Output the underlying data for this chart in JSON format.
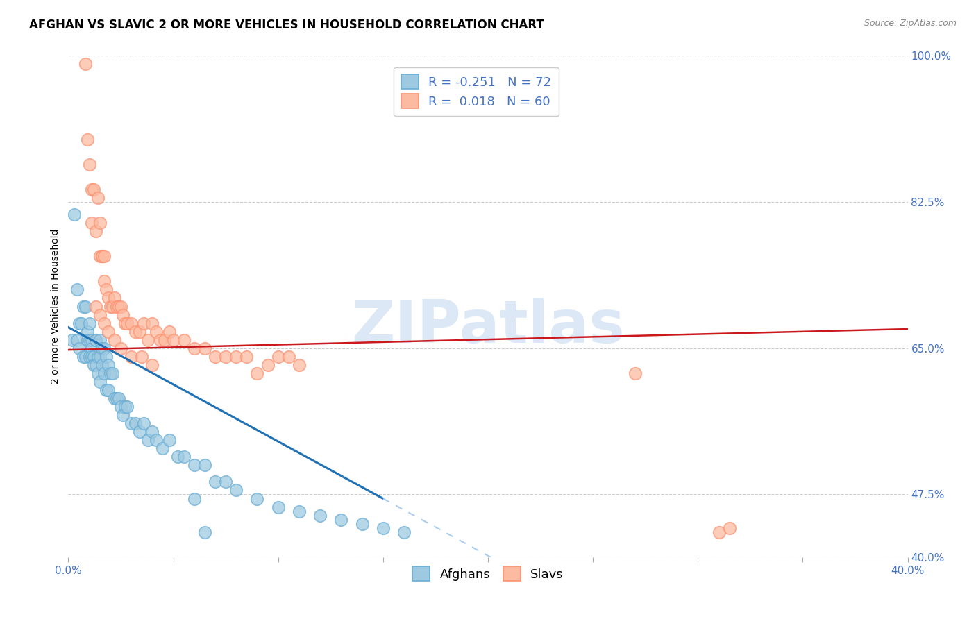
{
  "title": "AFGHAN VS SLAVIC 2 OR MORE VEHICLES IN HOUSEHOLD CORRELATION CHART",
  "source": "Source: ZipAtlas.com",
  "ylabel": "2 or more Vehicles in Household",
  "xlim": [
    0.0,
    0.4
  ],
  "ylim": [
    0.4,
    1.0
  ],
  "ytick_positions": [
    0.4,
    0.475,
    0.65,
    0.825,
    1.0
  ],
  "ytick_labels": [
    "40.0%",
    "47.5%",
    "65.0%",
    "82.5%",
    "100.0%"
  ],
  "blue_color": "#9ecae1",
  "pink_color": "#fcbba1",
  "blue_edge_color": "#6baed6",
  "pink_edge_color": "#fc9272",
  "blue_line_color": "#2171b5",
  "pink_line_color": "#cb181d",
  "watermark": "ZIPatlas",
  "title_fontsize": 12,
  "label_fontsize": 10,
  "tick_fontsize": 11,
  "blue_points_x": [
    0.002,
    0.003,
    0.004,
    0.004,
    0.005,
    0.005,
    0.006,
    0.007,
    0.007,
    0.008,
    0.008,
    0.009,
    0.009,
    0.01,
    0.01,
    0.01,
    0.011,
    0.011,
    0.011,
    0.012,
    0.012,
    0.013,
    0.013,
    0.013,
    0.014,
    0.014,
    0.015,
    0.015,
    0.015,
    0.016,
    0.016,
    0.017,
    0.017,
    0.018,
    0.018,
    0.019,
    0.019,
    0.02,
    0.021,
    0.022,
    0.023,
    0.024,
    0.025,
    0.026,
    0.027,
    0.028,
    0.03,
    0.032,
    0.034,
    0.036,
    0.038,
    0.04,
    0.042,
    0.045,
    0.048,
    0.052,
    0.055,
    0.06,
    0.065,
    0.07,
    0.075,
    0.08,
    0.09,
    0.1,
    0.11,
    0.12,
    0.13,
    0.14,
    0.15,
    0.16,
    0.06,
    0.065
  ],
  "blue_points_y": [
    0.66,
    0.81,
    0.66,
    0.72,
    0.68,
    0.65,
    0.68,
    0.64,
    0.7,
    0.7,
    0.64,
    0.67,
    0.66,
    0.68,
    0.66,
    0.64,
    0.66,
    0.65,
    0.64,
    0.64,
    0.63,
    0.66,
    0.63,
    0.66,
    0.64,
    0.62,
    0.64,
    0.66,
    0.61,
    0.65,
    0.63,
    0.65,
    0.62,
    0.64,
    0.6,
    0.63,
    0.6,
    0.62,
    0.62,
    0.59,
    0.59,
    0.59,
    0.58,
    0.57,
    0.58,
    0.58,
    0.56,
    0.56,
    0.55,
    0.56,
    0.54,
    0.55,
    0.54,
    0.53,
    0.54,
    0.52,
    0.52,
    0.51,
    0.51,
    0.49,
    0.49,
    0.48,
    0.47,
    0.46,
    0.455,
    0.45,
    0.445,
    0.44,
    0.435,
    0.43,
    0.47,
    0.43
  ],
  "pink_points_x": [
    0.008,
    0.009,
    0.01,
    0.011,
    0.011,
    0.012,
    0.013,
    0.014,
    0.015,
    0.015,
    0.016,
    0.016,
    0.017,
    0.017,
    0.018,
    0.019,
    0.02,
    0.021,
    0.022,
    0.023,
    0.024,
    0.025,
    0.026,
    0.027,
    0.028,
    0.03,
    0.032,
    0.034,
    0.036,
    0.038,
    0.04,
    0.042,
    0.044,
    0.046,
    0.048,
    0.05,
    0.055,
    0.06,
    0.065,
    0.07,
    0.075,
    0.08,
    0.085,
    0.09,
    0.095,
    0.1,
    0.105,
    0.11,
    0.27,
    0.31,
    0.315,
    0.013,
    0.015,
    0.017,
    0.019,
    0.022,
    0.025,
    0.03,
    0.035,
    0.04
  ],
  "pink_points_y": [
    0.99,
    0.9,
    0.87,
    0.84,
    0.8,
    0.84,
    0.79,
    0.83,
    0.76,
    0.8,
    0.76,
    0.76,
    0.76,
    0.73,
    0.72,
    0.71,
    0.7,
    0.7,
    0.71,
    0.7,
    0.7,
    0.7,
    0.69,
    0.68,
    0.68,
    0.68,
    0.67,
    0.67,
    0.68,
    0.66,
    0.68,
    0.67,
    0.66,
    0.66,
    0.67,
    0.66,
    0.66,
    0.65,
    0.65,
    0.64,
    0.64,
    0.64,
    0.64,
    0.62,
    0.63,
    0.64,
    0.64,
    0.63,
    0.62,
    0.43,
    0.435,
    0.7,
    0.69,
    0.68,
    0.67,
    0.66,
    0.65,
    0.64,
    0.64,
    0.63
  ]
}
